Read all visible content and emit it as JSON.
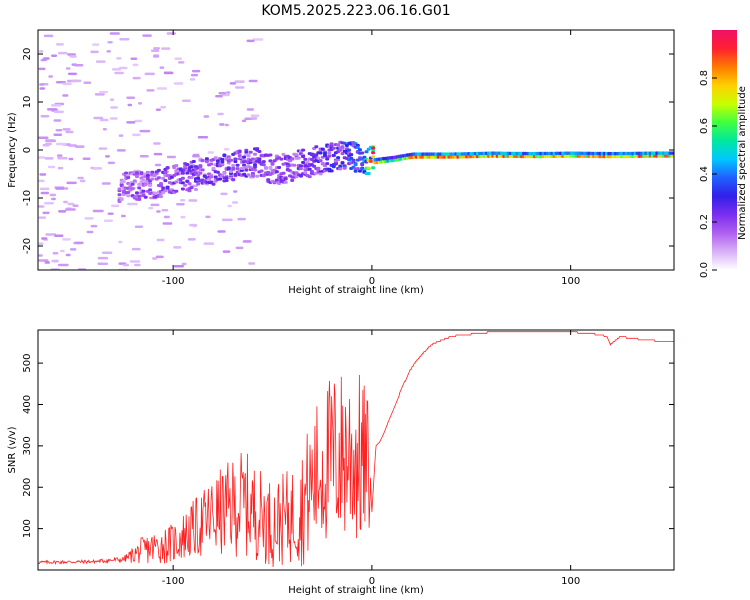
{
  "title": "KOM5.2025.223.06.16.G01",
  "chart_data": [
    {
      "type": "heatmap",
      "title": "KOM5.2025.223.06.16.G01",
      "xlabel": "Height of straight line (km)",
      "ylabel": "Frequency (Hz)",
      "xlim": [
        -168,
        152
      ],
      "ylim": [
        -25,
        25
      ],
      "xticks": [
        -100,
        0,
        100
      ],
      "yticks": [
        -20,
        -10,
        0,
        10,
        20
      ],
      "colorbar": {
        "label": "Normalized spectral amplitude",
        "range": [
          0,
          1
        ],
        "ticks": [
          0.0,
          0.2,
          0.4,
          0.6,
          0.8
        ],
        "tick_labels": [
          "0.0",
          "0.2",
          "0.4",
          "0.6",
          "0.8"
        ],
        "colormap": [
          "#ffffff",
          "#d8b0f8",
          "#b060f0",
          "#7a2ef0",
          "#3020e8",
          "#2060ff",
          "#00c8ff",
          "#00e8a0",
          "#40ff40",
          "#c8ff00",
          "#ffd000",
          "#ff7a00",
          "#ff2030",
          "#f0106a"
        ]
      },
      "ridge": {
        "x": [
          -130,
          -115,
          -100,
          -90,
          -80,
          -70,
          -60,
          -50,
          -40,
          -30,
          -20,
          -10,
          -5,
          0,
          10,
          20,
          40,
          60,
          80,
          100,
          120,
          140,
          152
        ],
        "frequency": [
          -7.5,
          -7,
          -6,
          -5,
          -4,
          -3,
          -2,
          -4,
          -3,
          -2,
          -1,
          -1,
          -2,
          -2,
          -1.5,
          -0.8,
          -0.8,
          -0.6,
          -0.7,
          -0.6,
          -0.7,
          -0.6,
          -0.6
        ],
        "amplitude": [
          0.15,
          0.18,
          0.2,
          0.22,
          0.2,
          0.22,
          0.2,
          0.18,
          0.2,
          0.2,
          0.25,
          0.3,
          0.3,
          0.82,
          0.5,
          0.85,
          0.88,
          0.85,
          0.82,
          0.8,
          0.82,
          0.85,
          0.8
        ]
      }
    },
    {
      "type": "line",
      "xlabel": "Height of straight line (km)",
      "ylabel": "SNR (v/v)",
      "xlim": [
        -168,
        152
      ],
      "ylim": [
        0,
        580
      ],
      "xticks": [
        -100,
        0,
        100
      ],
      "yticks": [
        100,
        200,
        300,
        400,
        500
      ],
      "series": [
        {
          "name": "SNR",
          "color": "#ff2020",
          "x": [
            -168,
            -140,
            -125,
            -115,
            -100,
            -90,
            -80,
            -70,
            -65,
            -60,
            -50,
            -40,
            -35,
            -30,
            -25,
            -20,
            -15,
            -12,
            -8,
            -5,
            -2,
            0,
            2,
            4,
            6,
            8,
            10,
            12,
            15,
            20,
            25,
            30,
            40,
            50,
            60,
            70,
            80,
            90,
            100,
            110,
            118,
            120,
            125,
            130,
            140,
            152
          ],
          "y": [
            18,
            20,
            25,
            45,
            60,
            90,
            120,
            140,
            150,
            135,
            100,
            120,
            140,
            190,
            230,
            250,
            255,
            260,
            250,
            240,
            230,
            140,
            300,
            310,
            330,
            355,
            380,
            400,
            440,
            490,
            520,
            545,
            565,
            570,
            575,
            575,
            575,
            575,
            575,
            572,
            565,
            545,
            565,
            560,
            555,
            550
          ],
          "noise_amplitude": [
            6,
            6,
            10,
            50,
            70,
            100,
            140,
            170,
            190,
            170,
            150,
            170,
            210,
            250,
            280,
            300,
            310,
            320,
            310,
            300,
            260,
            0,
            0,
            0,
            0,
            0,
            0,
            0,
            0,
            0,
            0,
            0,
            0,
            0,
            0,
            0,
            0,
            0,
            0,
            0,
            0,
            0,
            0,
            0,
            0,
            0
          ]
        }
      ]
    }
  ]
}
